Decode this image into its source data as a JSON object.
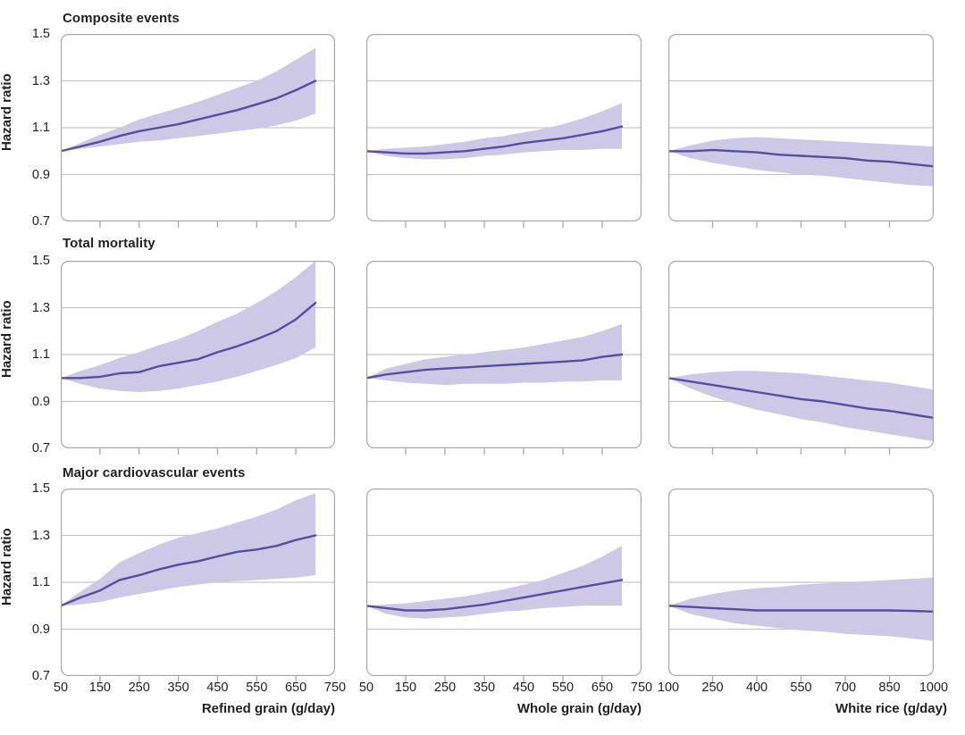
{
  "figure": {
    "colors": {
      "line": "#554f9e",
      "band": "#cdc8e6",
      "grid": "#c6c6c6",
      "frame": "#a9a9a9",
      "text": "#231f20"
    },
    "rows": [
      {
        "title": "Composite events"
      },
      {
        "title": "Total mortality"
      },
      {
        "title": "Major cardiovascular events"
      }
    ]
  },
  "chart_data": {
    "type": "line",
    "subtype": "spline-with-confidence-band",
    "y_axis": {
      "label": "Hazard ratio",
      "min": 0.7,
      "max": 1.5,
      "ticks": [
        "1.5",
        "1.3",
        "1.1",
        "0.9",
        "0.7"
      ],
      "gridlines": [
        1.3,
        1.1,
        0.9
      ],
      "grid": true
    },
    "legend": "none",
    "rows": [
      "Composite events",
      "Total mortality",
      "Major cardiovascular events"
    ],
    "columns": [
      {
        "label": "Refined grain (g/day)",
        "xmin": 50,
        "xmax": 750,
        "tick_labels": [
          50,
          150,
          250,
          350,
          450,
          550,
          650,
          750
        ],
        "tick_marks": [
          150,
          250,
          350,
          450,
          550,
          650
        ]
      },
      {
        "label": "Whole grain (g/day)",
        "xmin": 50,
        "xmax": 750,
        "tick_labels": [
          50,
          150,
          250,
          350,
          450,
          550,
          650,
          750
        ],
        "tick_marks": [
          150,
          250,
          350,
          450,
          550,
          650
        ]
      },
      {
        "label": "White rice (g/day)",
        "xmin": 100,
        "xmax": 1000,
        "tick_labels": [
          100,
          250,
          400,
          550,
          700,
          850,
          1000
        ],
        "tick_marks": [
          250,
          400,
          550,
          700,
          850
        ]
      }
    ],
    "panels": [
      {
        "row": 0,
        "col": 0,
        "outcome": "Composite events",
        "exposure": "Refined grain",
        "x": [
          50,
          100,
          150,
          200,
          250,
          300,
          350,
          400,
          450,
          500,
          550,
          600,
          650,
          700
        ],
        "hr": [
          1.0,
          1.02,
          1.04,
          1.065,
          1.085,
          1.1,
          1.115,
          1.135,
          1.155,
          1.175,
          1.2,
          1.225,
          1.26,
          1.3
        ],
        "lower": [
          1.0,
          1.01,
          1.02,
          1.03,
          1.04,
          1.045,
          1.055,
          1.065,
          1.075,
          1.085,
          1.095,
          1.11,
          1.13,
          1.16
        ],
        "upper": [
          1.0,
          1.035,
          1.07,
          1.1,
          1.135,
          1.16,
          1.185,
          1.21,
          1.24,
          1.27,
          1.3,
          1.34,
          1.39,
          1.44
        ]
      },
      {
        "row": 0,
        "col": 1,
        "outcome": "Composite events",
        "exposure": "Whole grain",
        "x": [
          50,
          100,
          150,
          200,
          250,
          300,
          350,
          400,
          450,
          500,
          550,
          600,
          650,
          700
        ],
        "hr": [
          1.0,
          0.995,
          0.99,
          0.99,
          0.995,
          1.0,
          1.01,
          1.02,
          1.035,
          1.045,
          1.055,
          1.07,
          1.085,
          1.105
        ],
        "lower": [
          1.0,
          0.98,
          0.97,
          0.965,
          0.965,
          0.97,
          0.98,
          0.985,
          0.995,
          1.0,
          1.005,
          1.005,
          1.01,
          1.01
        ],
        "upper": [
          1.0,
          1.01,
          1.015,
          1.02,
          1.03,
          1.04,
          1.055,
          1.065,
          1.08,
          1.095,
          1.115,
          1.14,
          1.17,
          1.205
        ]
      },
      {
        "row": 0,
        "col": 2,
        "outcome": "Composite events",
        "exposure": "White rice",
        "x": [
          100,
          175,
          250,
          325,
          400,
          475,
          550,
          625,
          700,
          775,
          850,
          925,
          1000
        ],
        "hr": [
          1.0,
          1.0,
          1.005,
          1.0,
          0.995,
          0.985,
          0.98,
          0.975,
          0.97,
          0.96,
          0.955,
          0.945,
          0.935
        ],
        "lower": [
          1.0,
          0.97,
          0.95,
          0.935,
          0.92,
          0.91,
          0.9,
          0.895,
          0.885,
          0.875,
          0.865,
          0.855,
          0.85
        ],
        "upper": [
          1.0,
          1.025,
          1.045,
          1.055,
          1.06,
          1.055,
          1.05,
          1.045,
          1.04,
          1.035,
          1.03,
          1.025,
          1.02
        ]
      },
      {
        "row": 1,
        "col": 0,
        "outcome": "Total mortality",
        "exposure": "Refined grain",
        "x": [
          50,
          100,
          150,
          200,
          250,
          300,
          350,
          400,
          450,
          500,
          550,
          600,
          650,
          700
        ],
        "hr": [
          1.0,
          1.0,
          1.005,
          1.02,
          1.025,
          1.05,
          1.065,
          1.08,
          1.11,
          1.135,
          1.165,
          1.2,
          1.25,
          1.32
        ],
        "lower": [
          1.0,
          0.975,
          0.955,
          0.945,
          0.94,
          0.945,
          0.955,
          0.97,
          0.985,
          1.005,
          1.03,
          1.055,
          1.085,
          1.13
        ],
        "upper": [
          1.0,
          1.03,
          1.055,
          1.085,
          1.11,
          1.14,
          1.165,
          1.2,
          1.24,
          1.275,
          1.32,
          1.37,
          1.43,
          1.5
        ]
      },
      {
        "row": 1,
        "col": 1,
        "outcome": "Total mortality",
        "exposure": "Whole grain",
        "x": [
          50,
          100,
          150,
          200,
          250,
          300,
          350,
          400,
          450,
          500,
          550,
          600,
          650,
          700
        ],
        "hr": [
          1.0,
          1.015,
          1.025,
          1.035,
          1.04,
          1.045,
          1.05,
          1.055,
          1.06,
          1.065,
          1.07,
          1.075,
          1.09,
          1.1
        ],
        "lower": [
          1.0,
          0.99,
          0.98,
          0.975,
          0.97,
          0.975,
          0.975,
          0.975,
          0.98,
          0.98,
          0.985,
          0.985,
          0.99,
          0.99
        ],
        "upper": [
          1.0,
          1.04,
          1.06,
          1.08,
          1.09,
          1.1,
          1.11,
          1.12,
          1.13,
          1.145,
          1.16,
          1.175,
          1.2,
          1.23
        ]
      },
      {
        "row": 1,
        "col": 2,
        "outcome": "Total mortality",
        "exposure": "White rice",
        "x": [
          100,
          175,
          250,
          325,
          400,
          475,
          550,
          625,
          700,
          775,
          850,
          925,
          1000
        ],
        "hr": [
          1.0,
          0.985,
          0.97,
          0.955,
          0.94,
          0.925,
          0.91,
          0.9,
          0.885,
          0.87,
          0.86,
          0.845,
          0.83
        ],
        "lower": [
          1.0,
          0.955,
          0.92,
          0.89,
          0.865,
          0.845,
          0.825,
          0.81,
          0.79,
          0.775,
          0.76,
          0.745,
          0.73
        ],
        "upper": [
          1.0,
          1.015,
          1.025,
          1.03,
          1.03,
          1.025,
          1.02,
          1.01,
          1.0,
          0.99,
          0.98,
          0.965,
          0.95
        ]
      },
      {
        "row": 2,
        "col": 0,
        "outcome": "Major cardiovascular events",
        "exposure": "Refined grain",
        "x": [
          50,
          100,
          150,
          200,
          250,
          300,
          350,
          400,
          450,
          500,
          550,
          600,
          650,
          700
        ],
        "hr": [
          1.0,
          1.035,
          1.065,
          1.11,
          1.13,
          1.155,
          1.175,
          1.19,
          1.21,
          1.23,
          1.24,
          1.255,
          1.28,
          1.3
        ],
        "lower": [
          1.0,
          1.005,
          1.015,
          1.035,
          1.05,
          1.065,
          1.08,
          1.09,
          1.1,
          1.105,
          1.11,
          1.115,
          1.12,
          1.13
        ],
        "upper": [
          1.0,
          1.06,
          1.115,
          1.185,
          1.225,
          1.26,
          1.29,
          1.31,
          1.33,
          1.355,
          1.38,
          1.41,
          1.45,
          1.48
        ]
      },
      {
        "row": 2,
        "col": 1,
        "outcome": "Major cardiovascular events",
        "exposure": "Whole grain",
        "x": [
          50,
          100,
          150,
          200,
          250,
          300,
          350,
          400,
          450,
          500,
          550,
          600,
          650,
          700
        ],
        "hr": [
          1.0,
          0.99,
          0.98,
          0.98,
          0.985,
          0.995,
          1.005,
          1.02,
          1.035,
          1.05,
          1.065,
          1.08,
          1.095,
          1.11
        ],
        "lower": [
          1.0,
          0.965,
          0.95,
          0.945,
          0.95,
          0.955,
          0.965,
          0.975,
          0.98,
          0.99,
          0.995,
          1.0,
          1.0,
          1.0
        ],
        "upper": [
          1.0,
          1.005,
          1.01,
          1.02,
          1.03,
          1.04,
          1.055,
          1.07,
          1.09,
          1.11,
          1.14,
          1.17,
          1.21,
          1.255
        ]
      },
      {
        "row": 2,
        "col": 2,
        "outcome": "Major cardiovascular events",
        "exposure": "White rice",
        "x": [
          100,
          175,
          250,
          325,
          400,
          475,
          550,
          625,
          700,
          775,
          850,
          925,
          1000
        ],
        "hr": [
          1.0,
          0.995,
          0.99,
          0.985,
          0.98,
          0.98,
          0.98,
          0.98,
          0.98,
          0.98,
          0.98,
          0.978,
          0.975
        ],
        "lower": [
          1.0,
          0.965,
          0.945,
          0.925,
          0.915,
          0.905,
          0.895,
          0.89,
          0.88,
          0.875,
          0.87,
          0.86,
          0.85
        ],
        "upper": [
          1.0,
          1.03,
          1.05,
          1.065,
          1.075,
          1.08,
          1.09,
          1.095,
          1.1,
          1.105,
          1.11,
          1.115,
          1.12
        ]
      }
    ]
  }
}
